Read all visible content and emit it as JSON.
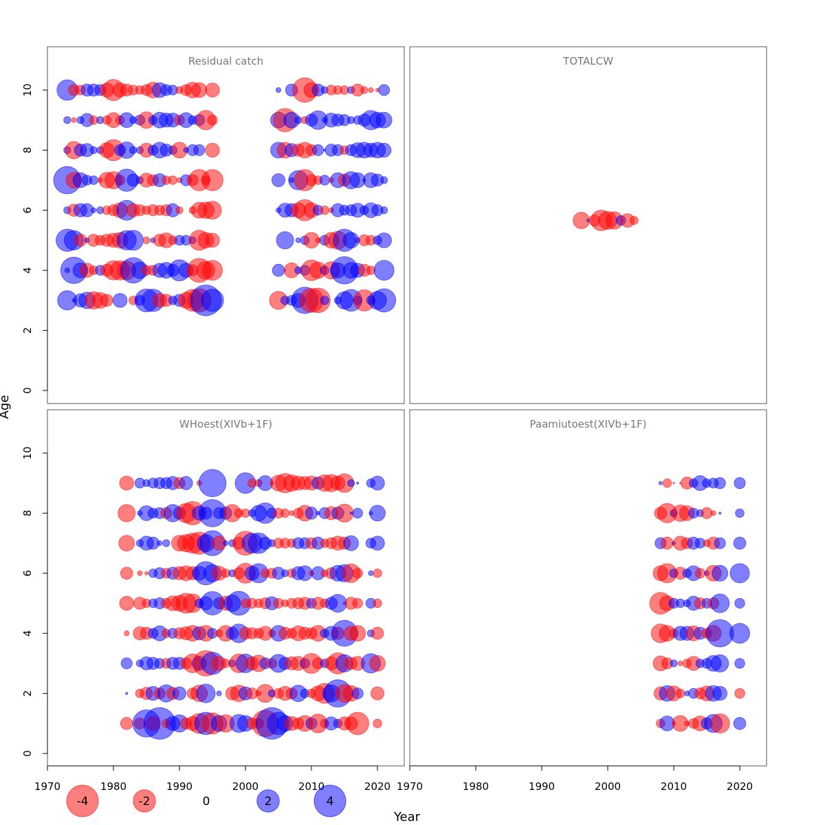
{
  "chart_data": {
    "type": "scatter",
    "subtype": "bubble",
    "xlabel": "Year",
    "ylabel": "Age",
    "xlim": [
      1970,
      2024
    ],
    "ylim": [
      -1,
      11.5
    ],
    "x_ticks": [
      1970,
      1980,
      1990,
      2000,
      2010,
      2020
    ],
    "y_ticks": [
      0,
      2,
      4,
      6,
      8,
      10
    ],
    "colors": {
      "negative": "#ff0000",
      "positive": "#0000ff"
    },
    "legend": {
      "placement": "bottom-left",
      "values": [
        -4,
        -2,
        0,
        2,
        4
      ],
      "labels": [
        "-4",
        "-2",
        "0",
        "2",
        "4"
      ]
    },
    "panels": [
      {
        "title": "Residual catch",
        "position": "top-left",
        "year_start": 1973,
        "ages": [
          10,
          9,
          8,
          7,
          6,
          5,
          4,
          3
        ],
        "residuals": [
          [
            1.7,
            -0.5,
            -0.4,
            0.6,
            0.6,
            0.5,
            -0.8,
            -1.8,
            -0.8,
            -0.6,
            -0.4,
            -0.3,
            -0.5,
            -1.0,
            0.9,
            0.5,
            0.4,
            -0.2,
            -0.5,
            -1.0,
            -0.9,
            null,
            -0.8,
            null,
            null,
            null,
            null,
            null,
            null,
            null,
            null,
            null,
            0.1,
            null,
            0.6,
            null,
            -2.4,
            -0.9,
            0.6,
            0.2,
            -0.4,
            -0.3,
            -0.3,
            0.2,
            -0.6,
            -0.2,
            -0.1,
            -0.05,
            0.5
          ],
          [
            0.2,
            -0.1,
            0.2,
            0.7,
            -0.3,
            0.2,
            -0.3,
            -0.9,
            -0.3,
            0.9,
            0.2,
            0.4,
            -1.1,
            0.3,
            1.0,
            0.8,
            0.8,
            -0.4,
            0.9,
            0.3,
            0.5,
            -1.5,
            -0.4,
            null,
            null,
            null,
            null,
            null,
            null,
            null,
            null,
            null,
            1.0,
            -2.2,
            1.0,
            0.2,
            -0.2,
            0.6,
            1.4,
            0.1,
            0.8,
            0.6,
            0.5,
            0.2,
            0.3,
            0.6,
            1.5,
            1.0,
            1.0
          ],
          [
            0.2,
            -1.2,
            0.6,
            0.7,
            0.2,
            0.2,
            -0.9,
            -1.8,
            0.5,
            1.1,
            0.2,
            0.2,
            -0.8,
            0.4,
            1.0,
            0.6,
            0.3,
            -1.0,
            0.1,
            0.5,
            0.5,
            null,
            -0.8,
            null,
            null,
            null,
            null,
            null,
            null,
            null,
            null,
            null,
            1.0,
            -1.0,
            0.7,
            -0.6,
            -1.0,
            -0.5,
            0.5,
            0.02,
            0.6,
            0.5,
            -0.3,
            0.5,
            0.9,
            1.0,
            0.8,
            1.0,
            0.8
          ],
          [
            3.0,
            -1.0,
            0.9,
            0.4,
            0.3,
            -0.1,
            -1.0,
            -1.2,
            -0.4,
            2.0,
            0.6,
            0.2,
            -0.8,
            -0.5,
            0.7,
            -0.3,
            -0.3,
            -0.1,
            0.5,
            -0.5,
            -1.8,
            -0.3,
            -1.8,
            null,
            null,
            null,
            null,
            null,
            null,
            null,
            null,
            null,
            0.7,
            null,
            0.1,
            1.5,
            -1.8,
            -0.5,
            -0.3,
            0.4,
            -0.1,
            0.9,
            -0.6,
            1.2,
            0.9,
            0.03,
            0.9,
            0.6,
            0.2
          ],
          [
            0.2,
            -0.6,
            0.7,
            0.7,
            0.1,
            0.2,
            -0.3,
            -0.5,
            -0.9,
            1.6,
            -0.7,
            -0.5,
            -0.3,
            -0.5,
            -0.4,
            -0.5,
            0.7,
            -0.2,
            null,
            -0.2,
            -1.0,
            -1.1,
            -1.3,
            null,
            null,
            null,
            null,
            null,
            null,
            null,
            null,
            null,
            0.1,
            0.8,
            0.7,
            -0.9,
            -1.8,
            -0.9,
            0.4,
            -0.3,
            -0.1,
            0.7,
            0.4,
            0.5,
            0.8,
            0.3,
            0.9,
            0.5,
            0.2
          ],
          [
            2.0,
            1.5,
            -0.6,
            0.1,
            -0.6,
            -0.4,
            -0.6,
            -0.8,
            -1.0,
            1.5,
            1.6,
            null,
            -0.2,
            0.1,
            -0.6,
            -0.9,
            -0.3,
            0.4,
            0.4,
            0.2,
            -1.6,
            -1.0,
            -0.8,
            null,
            null,
            null,
            null,
            null,
            null,
            null,
            null,
            null,
            null,
            1.2,
            null,
            0.1,
            0.3,
            -1.0,
            -0.1,
            0.4,
            -1.0,
            -1.3,
            2.0,
            1.0,
            0.1,
            -0.5,
            -0.4,
            0.3,
            0.9
          ],
          [
            0.1,
            2.8,
            0.9,
            -0.8,
            -0.3,
            0.4,
            -0.6,
            -1.5,
            -1.5,
            -1.4,
            2.6,
            1.1,
            -0.4,
            -0.4,
            0.8,
            1.0,
            0.6,
            1.8,
            0.8,
            -0.5,
            -2.3,
            -1.3,
            -1.6,
            null,
            null,
            null,
            null,
            null,
            null,
            null,
            null,
            null,
            0.6,
            0.01,
            -0.9,
            0.2,
            0.4,
            -1.7,
            -1.1,
            0.3,
            -1.2,
            0.9,
            3.0,
            1.0,
            0.8,
            -0.6,
            -0.3,
            null,
            1.6
          ],
          [
            1.5,
            0.05,
            0.7,
            1.1,
            -1.2,
            -1.0,
            -0.6,
            null,
            0.8,
            null,
            -0.3,
            0.4,
            2.1,
            2.0,
            -0.8,
            -0.6,
            0.3,
            0.6,
            -1.0,
            -1.9,
            -2.2,
            3.8,
            2.0,
            null,
            null,
            null,
            null,
            null,
            null,
            null,
            null,
            null,
            -1.3,
            0.3,
            0.4,
            0.8,
            2.8,
            -2.3,
            -2.4,
            0.3,
            null,
            0.2,
            1.2,
            1.9,
            0.3,
            -1.8,
            0.3,
            1.3,
            2.2
          ]
        ]
      },
      {
        "title": "TOTALCW",
        "position": "top-right",
        "year_start": 1996,
        "ages": [
          5.66
        ],
        "residuals": [
          [
            -1.1,
            0.03,
            -0.5,
            -1.7,
            -1.3,
            -1.2,
            0.37,
            -0.75,
            -0.27
          ]
        ]
      },
      {
        "title": "WHoest(XIVb+1F)",
        "position": "bottom-left",
        "year_start": 1982,
        "ages": [
          9,
          8,
          7,
          6,
          5,
          4,
          3,
          2,
          1
        ],
        "residuals": [
          [
            -0.8,
            null,
            0.4,
            0.2,
            0.4,
            0.5,
            0.5,
            0.7,
            -0.5,
            0.7,
            null,
            -0.1,
            null,
            3.0,
            null,
            null,
            null,
            null,
            1.7,
            -0.3,
            -0.2,
            0.9,
            -0.05,
            -1.0,
            -1.5,
            -1.1,
            -0.8,
            -0.7,
            -0.8,
            0.6,
            -1.1,
            -1.2,
            -0.8,
            -1.4,
            0.2,
            0.02,
            null,
            0.3,
            0.8
          ],
          [
            -1.2,
            null,
            0.1,
            0.9,
            0.4,
            0.5,
            -0.5,
            1.2,
            0.6,
            -1.5,
            -2.2,
            0.8,
            0.6,
            3.0,
            0.5,
            0.6,
            -1.2,
            -0.3,
            -0.3,
            0.2,
            1.0,
            1.7,
            0.4,
            -0.4,
            -0.3,
            -0.1,
            -0.4,
            -1.0,
            0.6,
            0.05,
            0.5,
            -0.7,
            0.6,
            -1.3,
            0.02,
            0.4,
            null,
            0.05,
            1.0
          ],
          [
            -1.0,
            null,
            0.2,
            0.8,
            0.6,
            0.1,
            0.2,
            null,
            -1.0,
            -1.2,
            -1.6,
            -2.0,
            1.2,
            2.5,
            -0.8,
            0.1,
            0.2,
            -0.6,
            -2.3,
            1.6,
            1.7,
            0.6,
            0.2,
            -0.4,
            -0.4,
            -0.3,
            0.5,
            0.5,
            -0.5,
            0.6,
            -0.3,
            -0.5,
            -0.8,
            -0.6,
            0.9,
            null,
            null,
            0.4,
            0.8
          ],
          [
            -0.6,
            null,
            -0.1,
            -0.05,
            0.3,
            0.5,
            -0.4,
            0.6,
            -0.7,
            -0.9,
            -0.7,
            0.8,
            2.2,
            1.2,
            -0.8,
            -0.3,
            0.2,
            -0.5,
            -1.6,
            0.8,
            1.5,
            -0.3,
            -0.4,
            0.6,
            0.2,
            -0.3,
            0.7,
            0.9,
            -0.1,
            0.7,
            -0.2,
            -0.5,
            1.0,
            1.2,
            -1.4,
            -0.4,
            null,
            0.1,
            -0.3
          ],
          [
            -0.8,
            null,
            -0.6,
            -0.3,
            0.3,
            0.5,
            -0.4,
            -0.9,
            -1.0,
            -1.6,
            -1.4,
            0.3,
            0.7,
            2.2,
            0.5,
            -0.8,
            1.1,
            2.3,
            -0.3,
            -0.4,
            -0.3,
            -0.5,
            0.7,
            -0.4,
            -0.2,
            -0.4,
            -0.5,
            -0.6,
            0.4,
            -0.6,
            -0.3,
            0.6,
            1.3,
            0.02,
            -0.6,
            -0.4,
            null,
            0.4,
            -0.3
          ],
          [
            -0.1,
            null,
            -0.7,
            -0.6,
            0.4,
            0.9,
            -0.3,
            0.4,
            -0.5,
            -0.7,
            -1.0,
            0.7,
            -1.0,
            0.4,
            -0.2,
            -1.0,
            0.6,
            1.4,
            -0.6,
            -0.5,
            -0.4,
            -0.8,
            -0.2,
            1.0,
            -0.6,
            -0.4,
            -0.9,
            -0.6,
            -0.5,
            -1.0,
            0.3,
            0.8,
            -0.6,
            2.7,
            -0.8,
            -1.0,
            null,
            0.2,
            -0.6
          ],
          [
            0.5,
            null,
            0.2,
            0.7,
            0.6,
            0.4,
            -0.4,
            0.6,
            0.6,
            -0.5,
            -1.4,
            0.8,
            -2.6,
            2.0,
            -0.8,
            -0.3,
            0.2,
            -1.4,
            1.4,
            -0.7,
            -1.1,
            0.5,
            -0.4,
            1.3,
            0.6,
            -0.7,
            -0.8,
            0.4,
            -1.6,
            -0.5,
            0.3,
            -0.7,
            -1.8,
            1.2,
            -0.6,
            -0.8,
            null,
            1.5,
            -1.0
          ],
          [
            0.02,
            null,
            -0.3,
            -0.6,
            0.8,
            -0.5,
            1.2,
            -0.6,
            0.7,
            null,
            -0.5,
            -1.1,
            1.4,
            null,
            0.1,
            null,
            -0.7,
            -1.1,
            0.7,
            -0.5,
            -0.1,
            -1.3,
            0.2,
            -0.4,
            -0.8,
            -0.5,
            1.1,
            0.3,
            -0.3,
            -0.9,
            -1.6,
            1.2,
            3.0,
            -1.3,
            -1.0,
            0.5,
            null,
            null,
            -0.7
          ],
          [
            -0.6,
            null,
            -0.5,
            3.0,
            -0.8,
            4.0,
            -0.3,
            0.8,
            1.2,
            -0.5,
            -0.8,
            -1.6,
            2.0,
            -1.8,
            1.0,
            -1.2,
            null,
            1.3,
            1.0,
            -0.5,
            -0.4,
            -2.8,
            4.0,
            2.0,
            1.0,
            -0.8,
            -0.5,
            -1.0,
            0.5,
            -1.4,
            -0.3,
            0.7,
            0.3,
            -0.7,
            -0.7,
            -2.0,
            null,
            null,
            -0.3
          ]
        ]
      },
      {
        "title": "Paamiutoest(XIVb+1F)",
        "position": "bottom-right",
        "year_start": 2008,
        "ages": [
          9,
          8,
          7,
          6,
          5,
          4,
          3,
          2,
          1
        ],
        "residuals": [
          [
            0.05,
            -0.3,
            -0.01,
            -0.01,
            -0.6,
            0.3,
            0.9,
            0.3,
            0.4,
            0.5,
            null,
            null,
            0.5
          ],
          [
            -0.6,
            -1.5,
            0.2,
            -1.1,
            -0.9,
            0.4,
            0.2,
            -0.5,
            -0.1,
            0.02,
            null,
            null,
            0.3
          ],
          [
            0.5,
            -0.6,
            0.05,
            -0.8,
            -0.5,
            0.6,
            0.4,
            -0.2,
            -0.6,
            0.5,
            null,
            null,
            0.6
          ],
          [
            -0.9,
            -1.5,
            0.3,
            -0.6,
            0.3,
            0.9,
            -0.4,
            0.1,
            -1.0,
            1.0,
            null,
            null,
            1.5
          ],
          [
            -1.9,
            -0.9,
            0.4,
            0.3,
            0.2,
            0.8,
            -0.5,
            0.4,
            -0.5,
            1.4,
            null,
            null,
            0.4
          ],
          [
            -1.4,
            -1.0,
            -0.3,
            0.8,
            0.8,
            -0.9,
            0.6,
            -0.4,
            -1.0,
            3.0,
            null,
            null,
            1.6
          ],
          [
            -0.9,
            -0.5,
            0.2,
            -0.1,
            -0.3,
            -0.8,
            0.3,
            0.4,
            1.0,
            1.2,
            null,
            null,
            0.4
          ],
          [
            -0.7,
            1.0,
            -0.9,
            -0.3,
            0.1,
            0.4,
            -0.5,
            -0.9,
            1.0,
            0.8,
            null,
            null,
            -0.4
          ],
          [
            -0.3,
            0.9,
            -0.05,
            -1.0,
            -0.1,
            -0.4,
            -0.9,
            0.5,
            1.3,
            -1.5,
            null,
            null,
            0.6
          ]
        ]
      }
    ]
  }
}
